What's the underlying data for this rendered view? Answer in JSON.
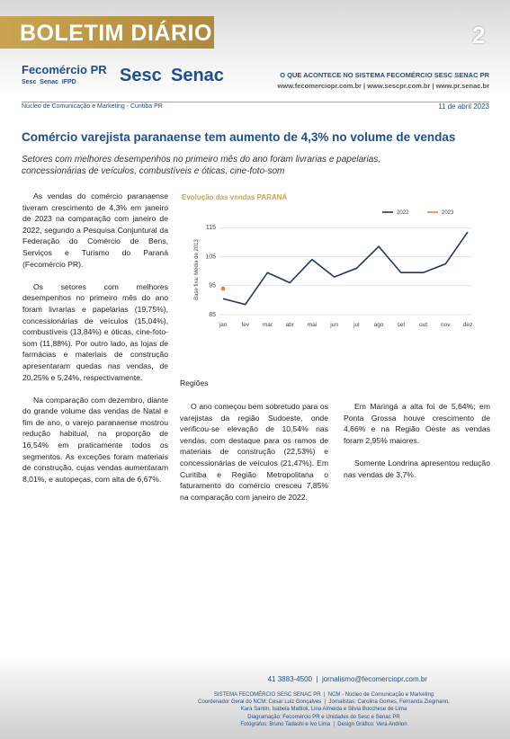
{
  "header": {
    "title": "BOLETIM DIÁRIO",
    "page_number": "2",
    "logo_main": "Fecomércio PR",
    "logo_sub": "Sesc  Senac  IFPD",
    "logo_sesc": "Sesc",
    "logo_senac": "Senac",
    "tagline": "O QUE ACONTECE NO SISTEMA FECOMÉRCIO SESC SENAC PR",
    "websites": "www.fecomerciopr.com.br | www.sescpr.com.br | www.pr.senac.br",
    "department": "Núcleo de Comunicação e Marketing - Curitiba PR",
    "date": "11 de abril 2023"
  },
  "article": {
    "title": "Comércio varejista paranaense tem aumento de 4,3% no volume de vendas",
    "subtitle": "Setores com melhores desempenhos no primeiro mês do ano foram livrarias e papelarias, concessionárias de veículos, combustíveis e óticas, cine-foto-som",
    "column1": [
      "As vendas do comércio paranaense tiveram crescimento de 4,3% em janeiro de 2023 na comparação com janeiro de 2022, segundo a Pesquisa Conjuntural da Federação do Comércio de Bens, Serviços e Turismo do Paraná (Fecomércio PR).",
      "Os setores com melhores desempenhos no primeiro mês do ano foram livrarias e papelarias (19,75%), concessionárias de veículos (15,04%), combustíveis (13,84%) e óticas, cine-foto-som (11,88%). Por outro lado, as lojas de farmácias e materiais de construção apresentaram quedas nas vendas, de 20,25% e 5,24%, respectivamente.",
      "Na comparação com dezembro, diante do grande volume das vendas de Natal e fim de ano, o varejo paranaense mostrou redução habitual, na proporção de 16,54% em praticamente todos os segmentos. As exceções foram materiais de construção, cujas vendas aumentaram 8,01%, e autopeças, com alta de 6,67%."
    ],
    "section_heading": "Regiões",
    "column2": [
      "O ano começou bem sobretudo para os varejistas da região Sudoeste, onde verificou-se elevação de 10,54% nas vendas, com destaque para os ramos de materiais de construção (22,53%) e concessionárias de veículos (21,47%). Em Curitiba e Região Metropolitana o faturamento do comércio cresceu 7,85% na comparação com janeiro de 2022."
    ],
    "column3": [
      "Em Maringá a alta foi de 5,64%; em Ponta Grossa houve crescimento de 4,66% e na Região Oeste as vendas foram 2,95% maiores.",
      "Somente Londrina apresentou redução nas vendas de 3,7%."
    ]
  },
  "chart_data": {
    "type": "line",
    "title": "Evolução das vendas PARANÁ",
    "ylabel": "Base fixa: Média de 2013",
    "categories": [
      "jan",
      "fev",
      "mar",
      "abr",
      "mai",
      "jun",
      "jul",
      "ago",
      "set",
      "out",
      "nov",
      "dez"
    ],
    "series": [
      {
        "name": "2022",
        "color": "#1f3864",
        "values": [
          90.5,
          88.5,
          99.5,
          96,
          104,
          98,
          101,
          108.5,
          99.5,
          99.5,
          102.5,
          113.5
        ]
      },
      {
        "name": "2023",
        "color": "#ed7d31",
        "values": [
          94,
          null,
          null,
          null,
          null,
          null,
          null,
          null,
          null,
          null,
          null,
          null
        ]
      }
    ],
    "ylim": [
      85,
      116
    ],
    "yticks": [
      85,
      95,
      105,
      115
    ],
    "grid": true,
    "legend": "top-right"
  },
  "footer": {
    "contact": "41 3883-4500  |  jornalismo@fecomerciopr.com.br",
    "lines": [
      "SISTEMA FECOMÉRCIO SESC SENAC PR  |  NCM - Núcleo de Comunicação e Marketing",
      "Coordenador Geral do NCM: Cesar Luiz Gonçalves  |  Jornalistas: Carolina Gomes, Fernanda Ziegmann,",
      "Kara Santin, Isabela Mattioli, Lina Almeida e Silvia Bocchese de Lima",
      "Diagramação: Fecomércio PR e Unidades do Sesc e Senac PR",
      "Fotógrafos: Bruno Tadashi e Ivo Lima  |  Design Gráfico: Vera Andrion"
    ]
  }
}
